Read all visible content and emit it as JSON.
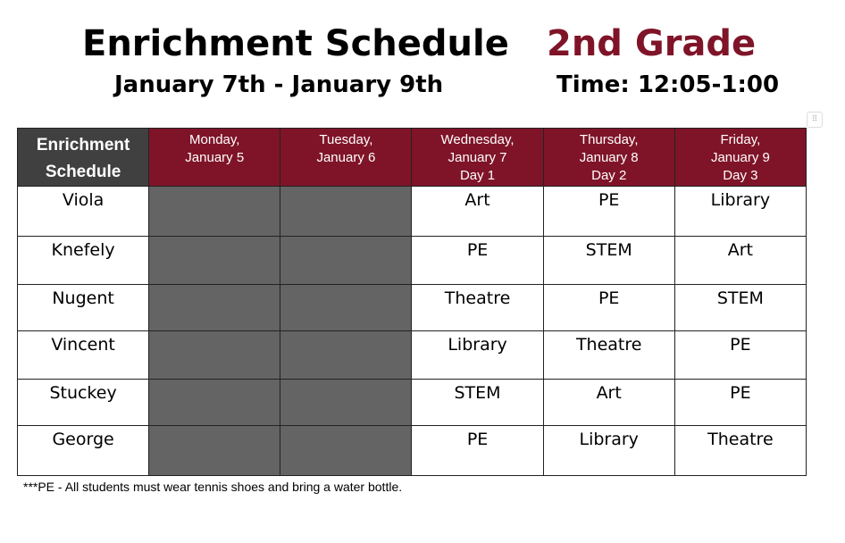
{
  "header": {
    "title": "Enrichment Schedule",
    "grade": "2nd Grade",
    "dates": "January 7th - January 9th",
    "time": "Time: 12:05-1:00"
  },
  "table": {
    "corner": [
      "Enrichment",
      "Schedule"
    ],
    "days": [
      [
        "Monday,",
        "January 5",
        ""
      ],
      [
        "Tuesday,",
        "January 6",
        ""
      ],
      [
        "Wednesday,",
        "January 7",
        "Day 1"
      ],
      [
        "Thursday,",
        "January 8",
        "Day 2"
      ],
      [
        "Friday,",
        "January 9",
        "Day 3"
      ]
    ],
    "rows": [
      {
        "teacher": "Viola",
        "wed": "Art",
        "thu": "PE",
        "fri": "Library"
      },
      {
        "teacher": "Knefely",
        "wed": "PE",
        "thu": "STEM",
        "fri": "Art"
      },
      {
        "teacher": "Nugent",
        "wed": "Theatre",
        "thu": "PE",
        "fri": "STEM"
      },
      {
        "teacher": "Vincent",
        "wed": "Library",
        "thu": "Theatre",
        "fri": "PE"
      },
      {
        "teacher": "Stuckey",
        "wed": "STEM",
        "thu": "Art",
        "fri": "PE"
      },
      {
        "teacher": "George",
        "wed": "PE",
        "thu": "Library",
        "fri": "Theatre"
      }
    ]
  },
  "note": "***PE - All students must wear tennis shoes and bring a water bottle.",
  "colors": {
    "accent": "#7f1428",
    "corner": "#404040",
    "blocked": "#646464"
  }
}
